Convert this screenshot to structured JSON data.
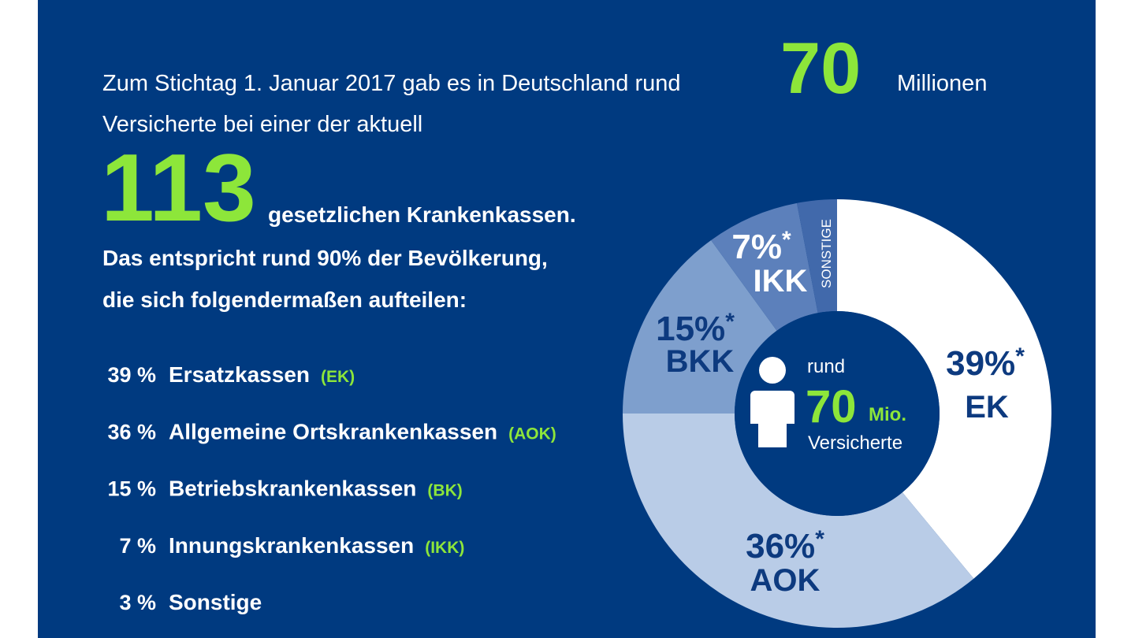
{
  "headline": {
    "line1": "Zum Stichtag 1. Januar 2017 gab es in Deutschland rund",
    "big_number": "70",
    "line1_end": "Millionen",
    "line2": "Versicherte bei einer der aktuell",
    "count": "113",
    "line3": "gesetzlichen Krankenkassen.",
    "line4": "Das entspricht rund 90% der Bevölkerung,",
    "line5": "die sich folgendermaßen aufteilen:"
  },
  "list": [
    {
      "share": "39 %",
      "name": "Ersatzkassen",
      "abbr": "(EK)"
    },
    {
      "share": "36 %",
      "name": "Allgemeine Ortskrankenkassen",
      "abbr": "(AOK)"
    },
    {
      "share": "15 %",
      "name": "Betriebskrankenkassen",
      "abbr": "(BK)"
    },
    {
      "share": "7 %",
      "name": "Innungskrankenkassen",
      "abbr": "(IKK)"
    },
    {
      "share": "3 %",
      "name": "Sonstige"
    }
  ],
  "center": {
    "prefix": "rund",
    "number": "70",
    "unit": "Mio.",
    "caption": "Versicherte"
  },
  "chart_data": {
    "type": "donut",
    "categories": [
      "EK",
      "AOK",
      "BKK",
      "IKK",
      "SONSTIGE"
    ],
    "values": [
      39,
      36,
      15,
      7,
      3
    ],
    "value_labels": [
      "39%",
      "36%",
      "15%",
      "7%",
      null
    ],
    "footnote_marker": "*",
    "colors": [
      "#ffffff",
      "#b9cce7",
      "#7e9fcd",
      "#5c80bb",
      "#4169ab"
    ]
  }
}
